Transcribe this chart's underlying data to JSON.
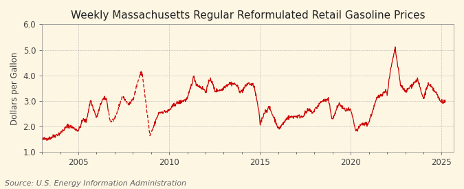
{
  "title": "Weekly Massachusetts Regular Reformulated Retail Gasoline Prices",
  "ylabel": "Dollars per Gallon",
  "source": "Source: U.S. Energy Information Administration",
  "ylim": [
    1.0,
    6.0
  ],
  "yticks": [
    1.0,
    2.0,
    3.0,
    4.0,
    5.0,
    6.0
  ],
  "background_color": "#fdf6e3",
  "plot_bg_color": "#fdf6e3",
  "line_color": "#cc0000",
  "grid_color": "#aaaaaa",
  "title_fontsize": 11,
  "label_fontsize": 8.5,
  "source_fontsize": 8,
  "line_width": 0.9,
  "start_year": 2003,
  "end_year": 2025
}
